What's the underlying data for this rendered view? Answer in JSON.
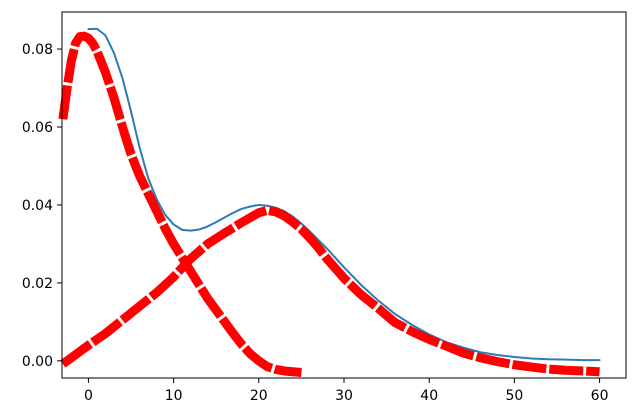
{
  "chart_data": {
    "type": "line",
    "title": "",
    "xlabel": "",
    "ylabel": "",
    "xlim": [
      -3.1,
      63.1
    ],
    "ylim": [
      -0.0044,
      0.0895
    ],
    "xticks": [
      0,
      10,
      20,
      30,
      40,
      50,
      60
    ],
    "yticks": [
      0.0,
      0.02,
      0.04,
      0.06,
      0.08
    ],
    "xtick_labels": [
      "0",
      "10",
      "20",
      "30",
      "40",
      "50",
      "60"
    ],
    "ytick_labels": [
      "0.00",
      "0.02",
      "0.04",
      "0.06",
      "0.08"
    ],
    "grid": false,
    "legend": "none",
    "series": [
      {
        "color": "#2c7bb6",
        "style": "thin-solid",
        "x": [
          0,
          1,
          2,
          3,
          4,
          5,
          6,
          7,
          8,
          9,
          10,
          11,
          12,
          13,
          14,
          15,
          16,
          17,
          18,
          19,
          20,
          21,
          22,
          23,
          24,
          25,
          26,
          27,
          28,
          30,
          32,
          34,
          36,
          38,
          40,
          42,
          44,
          46,
          48,
          50,
          52,
          54,
          56,
          58,
          60
        ],
        "y": [
          0.0851,
          0.0852,
          0.0835,
          0.079,
          0.0725,
          0.064,
          0.0548,
          0.047,
          0.0415,
          0.0375,
          0.035,
          0.0336,
          0.0334,
          0.0337,
          0.0345,
          0.0356,
          0.0368,
          0.038,
          0.039,
          0.0396,
          0.04,
          0.0398,
          0.0393,
          0.0384,
          0.037,
          0.0352,
          0.0332,
          0.031,
          0.0288,
          0.024,
          0.0195,
          0.0155,
          0.012,
          0.0092,
          0.0068,
          0.0048,
          0.0034,
          0.0022,
          0.0015,
          0.001,
          0.0006,
          0.0004,
          0.0003,
          0.0002,
          0.0002
        ]
      },
      {
        "color": "#ff0000",
        "style": "thick-dashed",
        "x": [
          -3,
          -2.5,
          -2,
          -1.5,
          -1,
          -0.5,
          0,
          0.5,
          1,
          2,
          3,
          4,
          5,
          6,
          7,
          8,
          9,
          10,
          11,
          12,
          13,
          14,
          15,
          16,
          17,
          18,
          19,
          20,
          21,
          22,
          23,
          24,
          25
        ],
        "y": [
          0.062,
          0.07,
          0.077,
          0.0815,
          0.0832,
          0.0833,
          0.0828,
          0.0815,
          0.0795,
          0.074,
          0.0675,
          0.06,
          0.053,
          0.0475,
          0.043,
          0.0385,
          0.034,
          0.03,
          0.0265,
          0.023,
          0.0195,
          0.016,
          0.013,
          0.01,
          0.007,
          0.0042,
          0.0018,
          0.0,
          -0.0015,
          -0.0022,
          -0.0026,
          -0.0028,
          -0.003
        ]
      },
      {
        "color": "#ff0000",
        "style": "thick-dashed",
        "x": [
          -3,
          0,
          2,
          4,
          6,
          8,
          10,
          12,
          14,
          16,
          18,
          20,
          21,
          22,
          23,
          24,
          25,
          26,
          27,
          28,
          30,
          32,
          34,
          36,
          38,
          40,
          42,
          44,
          46,
          48,
          50,
          52,
          54,
          56,
          58,
          60
        ],
        "y": [
          -0.0008,
          0.004,
          0.007,
          0.0105,
          0.014,
          0.0175,
          0.0215,
          0.0262,
          0.03,
          0.0328,
          0.0355,
          0.038,
          0.0386,
          0.0382,
          0.0372,
          0.0356,
          0.0338,
          0.0315,
          0.029,
          0.0262,
          0.0212,
          0.017,
          0.0135,
          0.0098,
          0.0075,
          0.0055,
          0.0038,
          0.002,
          0.0008,
          -0.0002,
          -0.001,
          -0.0016,
          -0.0021,
          -0.0024,
          -0.0026,
          -0.0028
        ]
      }
    ]
  }
}
